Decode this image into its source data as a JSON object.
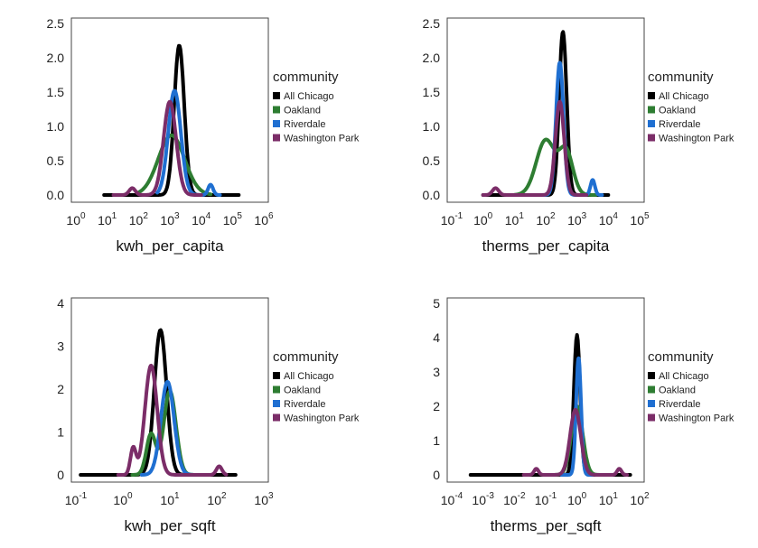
{
  "chart_data": [
    {
      "type": "line",
      "xscale": "log10",
      "xlabel": "kwh_per_capita",
      "ylabel": "",
      "xlim_log10": [
        0,
        6
      ],
      "xtick_exponents": [
        0,
        1,
        2,
        3,
        4,
        5,
        6
      ],
      "ylim": [
        0,
        2.5
      ],
      "yticks": [
        "0.0",
        "0.5",
        "1.0",
        "1.5",
        "2.0",
        "2.5"
      ],
      "legend_title": "community",
      "legend_position": "right",
      "series": [
        {
          "name": "All Chicago",
          "color": "#000000",
          "range_log10": [
            0.9,
            5.2
          ],
          "bumps": [
            [
              3.3,
              0.16,
              2.18
            ]
          ]
        },
        {
          "name": "Oakland",
          "color": "#2e7d32",
          "range_log10": [
            2.0,
            4.3
          ],
          "bumps": [
            [
              3.05,
              0.42,
              0.87
            ]
          ]
        },
        {
          "name": "Riverdale",
          "color": "#1f6fd1",
          "range_log10": [
            2.6,
            4.6
          ],
          "bumps": [
            [
              3.15,
              0.2,
              1.52
            ],
            [
              4.3,
              0.08,
              0.15
            ]
          ]
        },
        {
          "name": "Washington Park",
          "color": "#7b2d68",
          "range_log10": [
            1.2,
            4.0
          ],
          "bumps": [
            [
              3.0,
              0.2,
              1.36
            ],
            [
              1.8,
              0.1,
              0.1
            ]
          ]
        }
      ]
    },
    {
      "type": "line",
      "xscale": "log10",
      "xlabel": "therms_per_capita",
      "ylabel": "",
      "xlim_log10": [
        -1,
        5
      ],
      "xtick_exponents": [
        -1,
        0,
        1,
        2,
        3,
        4,
        5
      ],
      "ylim": [
        0,
        2.5
      ],
      "yticks": [
        "0.0",
        "0.5",
        "1.0",
        "1.5",
        "2.0",
        "2.5"
      ],
      "legend_title": "community",
      "legend_position": "right",
      "series": [
        {
          "name": "All Chicago",
          "color": "#000000",
          "range_log10": [
            0.0,
            4.0
          ],
          "bumps": [
            [
              2.55,
              0.12,
              2.38
            ]
          ]
        },
        {
          "name": "Oakland",
          "color": "#2e7d32",
          "range_log10": [
            1.0,
            3.6
          ],
          "bumps": [
            [
              2.0,
              0.3,
              0.8
            ],
            [
              2.65,
              0.22,
              0.62
            ]
          ]
        },
        {
          "name": "Riverdale",
          "color": "#1f6fd1",
          "range_log10": [
            1.8,
            3.8
          ],
          "bumps": [
            [
              2.45,
              0.12,
              1.93
            ],
            [
              3.5,
              0.07,
              0.22
            ]
          ]
        },
        {
          "name": "Washington Park",
          "color": "#7b2d68",
          "range_log10": [
            0.0,
            3.3
          ],
          "bumps": [
            [
              2.45,
              0.14,
              1.36
            ],
            [
              0.4,
              0.1,
              0.1
            ]
          ]
        }
      ]
    },
    {
      "type": "line",
      "xscale": "log10",
      "xlabel": "kwh_per_sqft",
      "ylabel": "",
      "xlim_log10": [
        -1,
        3
      ],
      "xtick_exponents": [
        -1,
        0,
        1,
        2,
        3
      ],
      "ylim": [
        0,
        4
      ],
      "yticks": [
        "0",
        "1",
        "2",
        "3",
        "4"
      ],
      "legend_title": "community",
      "legend_position": "right",
      "series": [
        {
          "name": "All Chicago",
          "color": "#000000",
          "range_log10": [
            -0.9,
            2.4
          ],
          "bumps": [
            [
              0.8,
              0.13,
              3.38
            ]
          ]
        },
        {
          "name": "Oakland",
          "color": "#2e7d32",
          "range_log10": [
            0.2,
            1.6
          ],
          "bumps": [
            [
              1.0,
              0.13,
              1.95
            ],
            [
              0.6,
              0.1,
              0.95
            ]
          ]
        },
        {
          "name": "Riverdale",
          "color": "#1f6fd1",
          "range_log10": [
            0.4,
            1.5
          ],
          "bumps": [
            [
              0.95,
              0.14,
              2.17
            ]
          ]
        },
        {
          "name": "Washington Park",
          "color": "#7b2d68",
          "range_log10": [
            -0.1,
            2.2
          ],
          "bumps": [
            [
              0.6,
              0.13,
              2.55
            ],
            [
              0.22,
              0.06,
              0.62
            ],
            [
              2.05,
              0.06,
              0.2
            ]
          ]
        }
      ]
    },
    {
      "type": "line",
      "xscale": "log10",
      "xlabel": "therms_per_sqft",
      "ylabel": "",
      "xlim_log10": [
        -4,
        2
      ],
      "xtick_exponents": [
        -4,
        -3,
        -2,
        -1,
        0,
        1,
        2
      ],
      "ylim": [
        0,
        5
      ],
      "yticks": [
        "0",
        "1",
        "2",
        "3",
        "4",
        "5"
      ],
      "legend_title": "community",
      "legend_position": "right",
      "series": [
        {
          "name": "All Chicago",
          "color": "#000000",
          "range_log10": [
            -3.4,
            1.7
          ],
          "bumps": [
            [
              0.0,
              0.1,
              4.08
            ]
          ]
        },
        {
          "name": "Oakland",
          "color": "#2e7d32",
          "range_log10": [
            -0.8,
            0.8
          ],
          "bumps": [
            [
              0.0,
              0.18,
              2.0
            ]
          ]
        },
        {
          "name": "Riverdale",
          "color": "#1f6fd1",
          "range_log10": [
            -0.5,
            0.5
          ],
          "bumps": [
            [
              0.05,
              0.08,
              3.4
            ]
          ]
        },
        {
          "name": "Washington Park",
          "color": "#7b2d68",
          "range_log10": [
            -1.7,
            1.6
          ],
          "bumps": [
            [
              -0.05,
              0.17,
              1.9
            ],
            [
              -1.3,
              0.07,
              0.18
            ],
            [
              1.35,
              0.07,
              0.18
            ]
          ]
        }
      ]
    }
  ]
}
